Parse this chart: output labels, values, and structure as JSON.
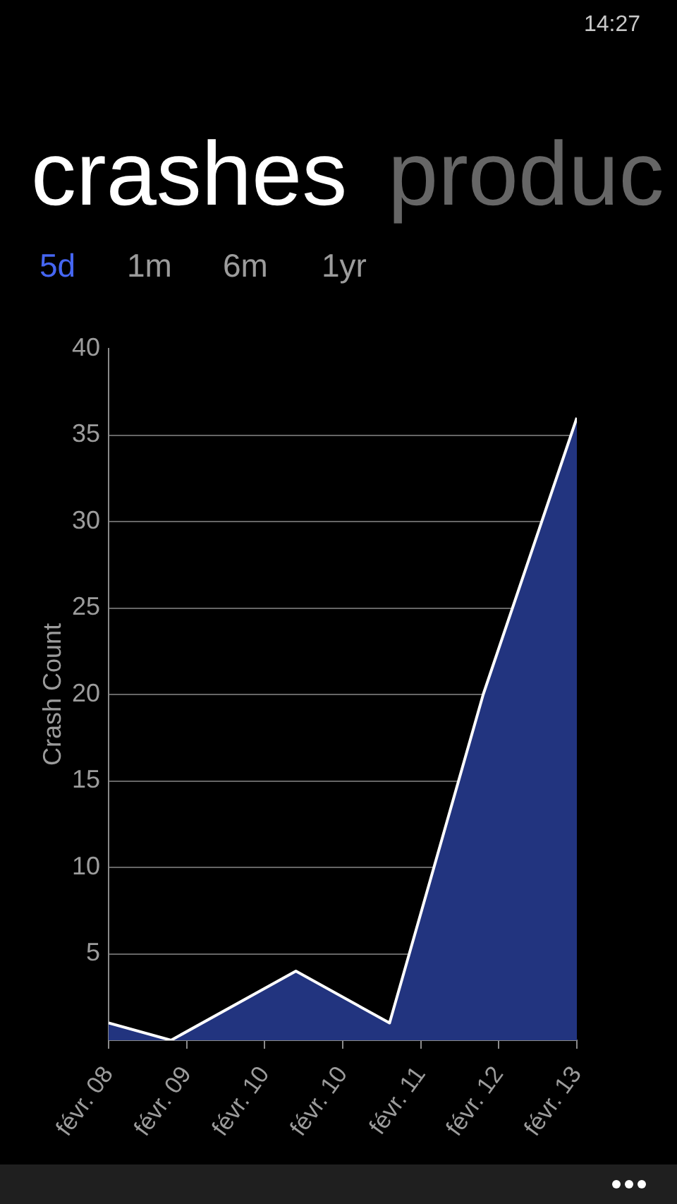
{
  "chart_data": {
    "type": "area",
    "title": "crashes",
    "ylabel": "Crash Count",
    "x": [
      "--02-08T08:00",
      "--02-09T00:00",
      "--02-10T08:00",
      "--02-11T08:00",
      "--02-12T08:00",
      "--02-13T08:00"
    ],
    "values": [
      1,
      0,
      4,
      1,
      20,
      36
    ],
    "color": "#22347f",
    "xlim": [
      "--02-08T08:00",
      "--02-13T08:00"
    ],
    "xticks": [
      {
        "value": "--02-08T08:00",
        "label": "févr. 08"
      },
      {
        "value": "--02-09T04:00",
        "label": "févr. 09"
      },
      {
        "value": "--02-10T00:00",
        "label": "févr. 10"
      },
      {
        "value": "--02-10T20:00",
        "label": "févr. 10"
      },
      {
        "value": "--02-11T16:00",
        "label": "févr. 11"
      },
      {
        "value": "--02-12T12:00",
        "label": "févr. 12"
      },
      {
        "value": "--02-13T08:00",
        "label": "févr. 13"
      }
    ],
    "ylim": [
      0,
      40
    ],
    "yticks": [
      5,
      10,
      15,
      20,
      25,
      30,
      35,
      40
    ],
    "grid": "y",
    "annotations": [
      "produc",
      "5d",
      "1m",
      "6m",
      "1yr",
      "14:27"
    ]
  }
}
